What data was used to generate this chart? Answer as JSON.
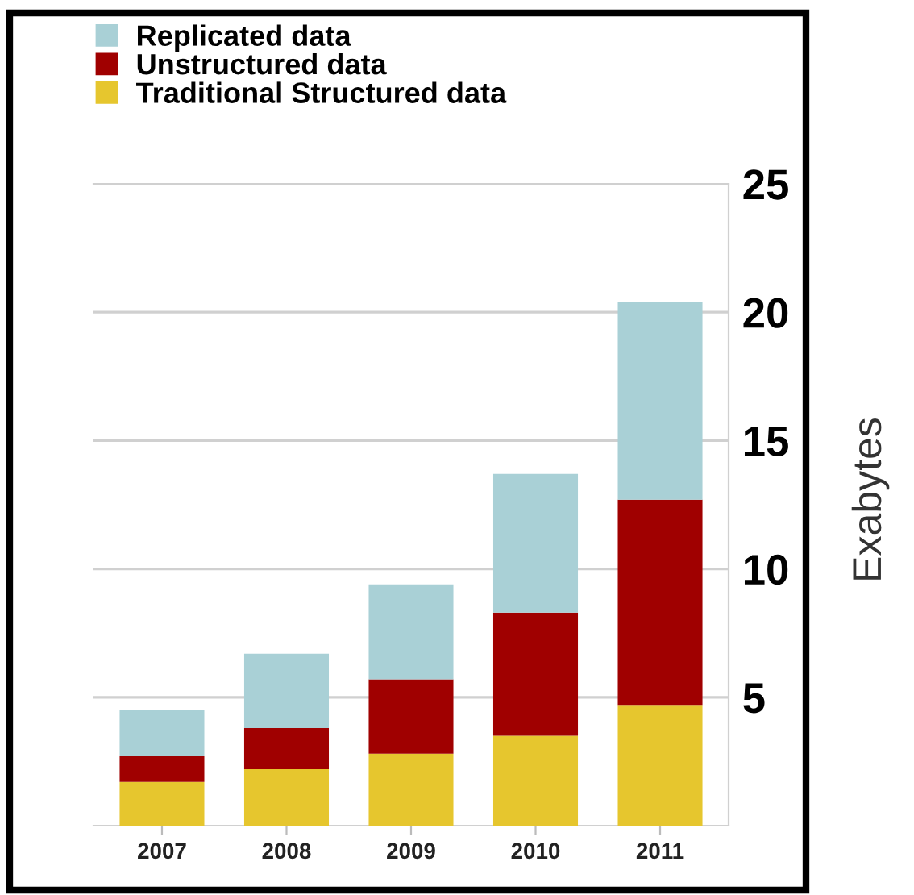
{
  "chart_data": {
    "type": "bar",
    "stacked": true,
    "ylabel": "Exabytes",
    "categories": [
      "2007",
      "2008",
      "2009",
      "2010",
      "2011"
    ],
    "series": [
      {
        "name": "Traditional Structured data",
        "color": "#e6c62e",
        "values": [
          1.7,
          2.2,
          2.8,
          3.5,
          4.7
        ]
      },
      {
        "name": "Unstructured data",
        "color": "#a00000",
        "values": [
          1.0,
          1.6,
          2.9,
          4.8,
          8.0
        ]
      },
      {
        "name": "Replicated data",
        "color": "#a9d0d6",
        "values": [
          1.8,
          2.9,
          3.7,
          5.4,
          7.7
        ]
      }
    ],
    "ylim": [
      0,
      25
    ],
    "yticks": [
      5,
      10,
      15,
      20,
      25
    ],
    "grid": "y",
    "legend": "top left"
  }
}
